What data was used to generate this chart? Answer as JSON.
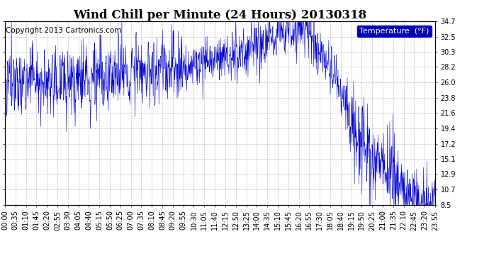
{
  "title": "Wind Chill per Minute (24 Hours) 20130318",
  "copyright": "Copyright 2013 Cartronics.com",
  "legend_label": "Temperature  (°F)",
  "line_color": "#0000cc",
  "background_color": "#ffffff",
  "plot_bg_color": "#ffffff",
  "grid_color": "#b0b0b0",
  "ylim": [
    8.5,
    34.7
  ],
  "yticks": [
    8.5,
    10.7,
    12.9,
    15.1,
    17.2,
    19.4,
    21.6,
    23.8,
    26.0,
    28.2,
    30.3,
    32.5,
    34.7
  ],
  "xtick_labels": [
    "00:00",
    "00:35",
    "01:10",
    "01:45",
    "02:20",
    "02:55",
    "03:30",
    "04:05",
    "04:40",
    "05:15",
    "05:50",
    "06:25",
    "07:00",
    "07:35",
    "08:10",
    "08:45",
    "09:20",
    "09:55",
    "10:30",
    "11:05",
    "11:40",
    "12:15",
    "12:50",
    "13:25",
    "14:00",
    "14:35",
    "15:10",
    "15:45",
    "16:20",
    "16:55",
    "17:30",
    "18:05",
    "18:40",
    "19:15",
    "19:50",
    "20:25",
    "21:00",
    "21:35",
    "22:10",
    "22:45",
    "23:20",
    "23:55"
  ],
  "legend_box_color": "#0000aa",
  "legend_text_color": "#ffffff",
  "title_fontsize": 12,
  "copyright_fontsize": 7.5,
  "tick_fontsize": 7
}
